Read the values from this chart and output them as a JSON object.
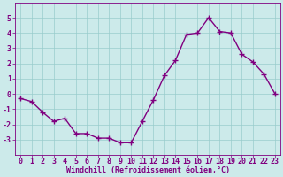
{
  "x": [
    0,
    1,
    2,
    3,
    4,
    5,
    6,
    7,
    8,
    9,
    10,
    11,
    12,
    13,
    14,
    15,
    16,
    17,
    18,
    19,
    20,
    21,
    22,
    23
  ],
  "y": [
    -0.3,
    -0.5,
    -1.2,
    -1.8,
    -1.6,
    -2.6,
    -2.6,
    -2.9,
    -2.9,
    -3.2,
    -3.2,
    -1.8,
    -0.4,
    1.2,
    2.2,
    3.9,
    4.0,
    5.0,
    4.1,
    4.0,
    2.6,
    2.1,
    1.3,
    0.0
  ],
  "line_color": "#800080",
  "marker": "+",
  "marker_size": 4,
  "line_width": 1.0,
  "bg_color": "#cceaea",
  "grid_color": "#99cccc",
  "xlabel": "Windchill (Refroidissement éolien,°C)",
  "xlabel_color": "#800080",
  "xlabel_fontsize": 6.0,
  "tick_color": "#800080",
  "tick_fontsize": 6.0,
  "xlim": [
    -0.5,
    23.5
  ],
  "ylim": [
    -4.0,
    6.0
  ],
  "yticks": [
    -3,
    -2,
    -1,
    0,
    1,
    2,
    3,
    4,
    5
  ],
  "xticks": [
    0,
    1,
    2,
    3,
    4,
    5,
    6,
    7,
    8,
    9,
    10,
    11,
    12,
    13,
    14,
    15,
    16,
    17,
    18,
    19,
    20,
    21,
    22,
    23
  ]
}
